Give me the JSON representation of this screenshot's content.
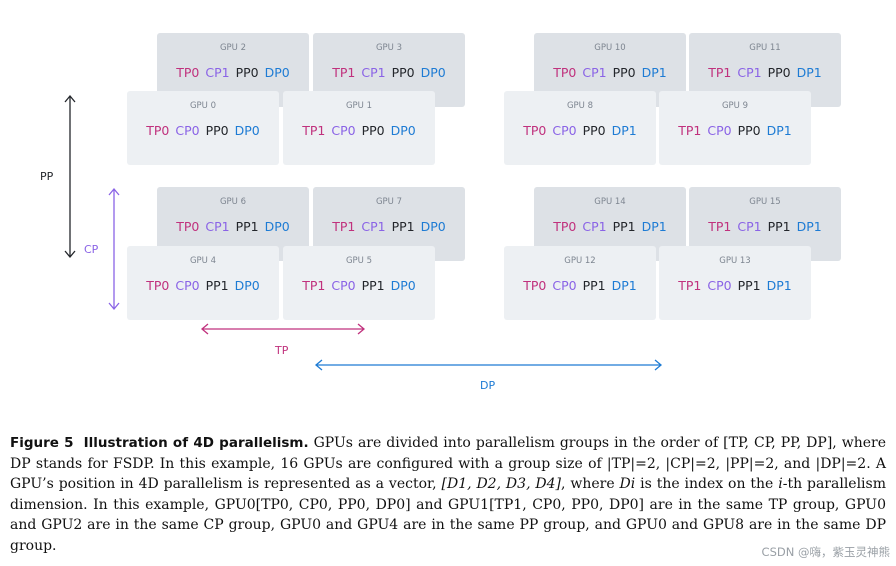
{
  "tag_colors": {
    "tp": "#c0317d",
    "cp": "#8a63e6",
    "pp": "#23262b",
    "dp": "#1d7bd4"
  },
  "gpus": [
    {
      "id": 2,
      "name": "GPU 2",
      "tags": [
        "TP0",
        "CP1",
        "PP0",
        "DP0"
      ]
    },
    {
      "id": 3,
      "name": "GPU 3",
      "tags": [
        "TP1",
        "CP1",
        "PP0",
        "DP0"
      ]
    },
    {
      "id": 10,
      "name": "GPU 10",
      "tags": [
        "TP0",
        "CP1",
        "PP0",
        "DP1"
      ]
    },
    {
      "id": 11,
      "name": "GPU 11",
      "tags": [
        "TP1",
        "CP1",
        "PP0",
        "DP1"
      ]
    },
    {
      "id": 0,
      "name": "GPU 0",
      "tags": [
        "TP0",
        "CP0",
        "PP0",
        "DP0"
      ]
    },
    {
      "id": 1,
      "name": "GPU 1",
      "tags": [
        "TP1",
        "CP0",
        "PP0",
        "DP0"
      ]
    },
    {
      "id": 8,
      "name": "GPU 8",
      "tags": [
        "TP0",
        "CP0",
        "PP0",
        "DP1"
      ]
    },
    {
      "id": 9,
      "name": "GPU 9",
      "tags": [
        "TP1",
        "CP0",
        "PP0",
        "DP1"
      ]
    },
    {
      "id": 6,
      "name": "GPU 6",
      "tags": [
        "TP0",
        "CP1",
        "PP1",
        "DP0"
      ]
    },
    {
      "id": 7,
      "name": "GPU 7",
      "tags": [
        "TP1",
        "CP1",
        "PP1",
        "DP0"
      ]
    },
    {
      "id": 14,
      "name": "GPU 14",
      "tags": [
        "TP0",
        "CP1",
        "PP1",
        "DP1"
      ]
    },
    {
      "id": 15,
      "name": "GPU 15",
      "tags": [
        "TP1",
        "CP1",
        "PP1",
        "DP1"
      ]
    },
    {
      "id": 4,
      "name": "GPU 4",
      "tags": [
        "TP0",
        "CP0",
        "PP1",
        "DP0"
      ]
    },
    {
      "id": 5,
      "name": "GPU 5",
      "tags": [
        "TP1",
        "CP0",
        "PP1",
        "DP0"
      ]
    },
    {
      "id": 12,
      "name": "GPU 12",
      "tags": [
        "TP0",
        "CP0",
        "PP1",
        "DP1"
      ]
    },
    {
      "id": 13,
      "name": "GPU 13",
      "tags": [
        "TP1",
        "CP0",
        "PP1",
        "DP1"
      ]
    }
  ],
  "axis_labels": {
    "pp": "PP",
    "cp": "CP",
    "tp": "TP",
    "dp": "DP"
  },
  "caption": {
    "figure_label": "Figure 5",
    "figure_title": "Illustration of 4D parallelism.",
    "text_before_vector": " GPUs are divided into parallelism groups in the order of [TP, CP, PP, DP], where DP stands for FSDP. In this example, 16 GPUs are configured with a group size of |TP|=2, |CP|=2, |PP|=2, and |DP|=2. A GPU’s position in 4D parallelism is represented as a vector, ",
    "vector": "[D1, D2, D3, D4]",
    "text_where": ", where ",
    "di": "Di",
    "text_index": " is the index on the ",
    "ith": "i",
    "text_after": "-th parallelism dimension. In this example, GPU0[TP0, CP0, PP0, DP0] and GPU1[TP1, CP0, PP0, DP0] are in the same TP group, GPU0 and GPU2 are in the same CP group, GPU0 and GPU4 are in the same PP group, and GPU0 and GPU8 are in the same DP group."
  },
  "watermark": "CSDN @嗨，紫玉灵神熊"
}
